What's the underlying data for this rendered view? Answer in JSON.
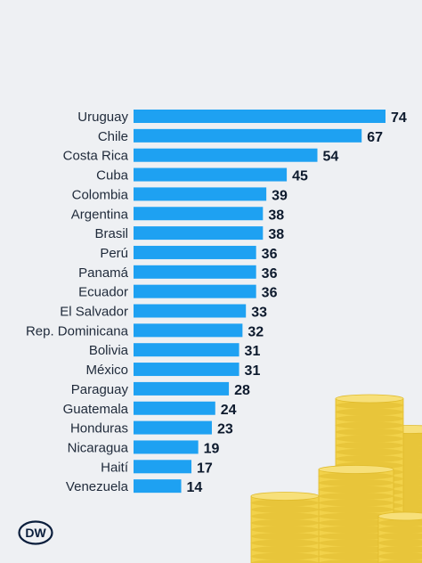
{
  "chart_data": {
    "type": "bar",
    "orientation": "horizontal",
    "categories": [
      "Uruguay",
      "Chile",
      "Costa Rica",
      "Cuba",
      "Colombia",
      "Argentina",
      "Brasil",
      "Perú",
      "Panamá",
      "Ecuador",
      "El Salvador",
      "Rep. Dominicana",
      "Bolivia",
      "México",
      "Paraguay",
      "Guatemala",
      "Honduras",
      "Nicaragua",
      "Haití",
      "Venezuela"
    ],
    "values": [
      74,
      67,
      54,
      45,
      39,
      38,
      38,
      36,
      36,
      36,
      33,
      32,
      31,
      31,
      28,
      24,
      23,
      19,
      17,
      14
    ],
    "xlim": [
      0,
      74
    ],
    "grid": false,
    "legend": "none",
    "bar_color": "#1ea1f2"
  },
  "logo": {
    "text": "DW",
    "icon": "dw-logo-icon"
  },
  "decoration": {
    "icon": "coin-stacks-icon",
    "coin_color": "#f2d24a"
  }
}
